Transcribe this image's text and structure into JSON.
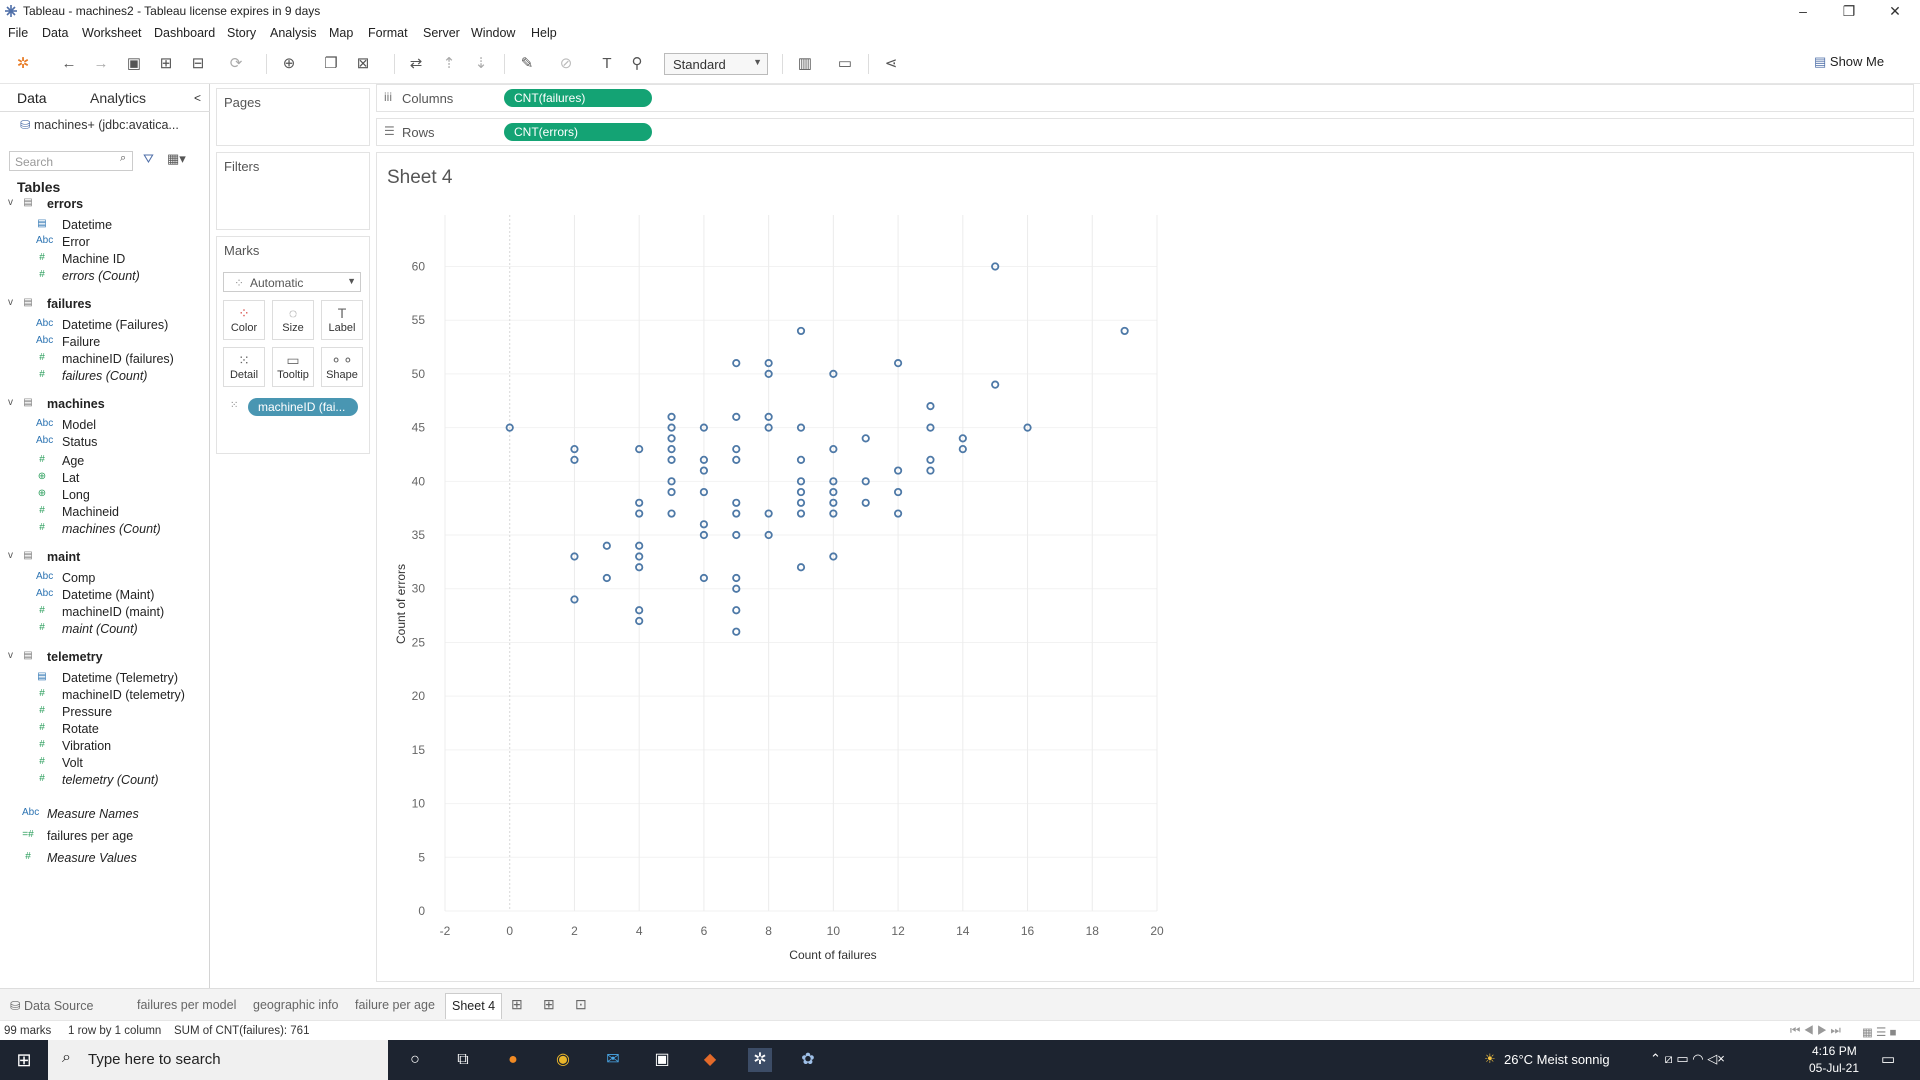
{
  "window": {
    "title": "Tableau - machines2 - Tableau license expires in 9 days",
    "controls": [
      "–",
      "❐",
      "✕"
    ]
  },
  "menu": [
    "File",
    "Data",
    "Worksheet",
    "Dashboard",
    "Story",
    "Analysis",
    "Map",
    "Format",
    "Server",
    "Window",
    "Help"
  ],
  "toolbar": {
    "fit_value": "Standard",
    "show_me": "Show Me",
    "icons": [
      "tableau-logo-icon",
      "undo-icon",
      "redo-icon",
      "save-icon",
      "new-datasource-icon",
      "pause-update-icon",
      "refresh-icon",
      "new-worksheet-icon",
      "duplicate-sheet-icon",
      "clear-sheet-icon",
      "swap-icon",
      "sort-asc-icon",
      "sort-desc-icon",
      "highlight-icon",
      "group-icon",
      "labels-icon",
      "pin-axis-icon",
      "chart-type-icon",
      "presentation-icon",
      "share-icon"
    ]
  },
  "data_pane": {
    "tab_data": "Data",
    "tab_analytics": "Analytics",
    "collapse": "<",
    "datasource": "machines+ (jdbc:avatica...",
    "search_placeholder": "Search",
    "tables_heading": "Tables",
    "tables": [
      {
        "name": "errors",
        "fields": [
          {
            "type": "date",
            "icon": "▤",
            "label": "Datetime"
          },
          {
            "type": "abc",
            "icon": "Abc",
            "label": "Error"
          },
          {
            "type": "num",
            "icon": "#",
            "label": "Machine ID"
          },
          {
            "type": "count",
            "icon": "#",
            "label": "errors (Count)"
          }
        ]
      },
      {
        "name": "failures",
        "fields": [
          {
            "type": "abc",
            "icon": "Abc",
            "label": "Datetime (Failures)"
          },
          {
            "type": "abc",
            "icon": "Abc",
            "label": "Failure"
          },
          {
            "type": "num",
            "icon": "#",
            "label": "machineID (failures)"
          },
          {
            "type": "count",
            "icon": "#",
            "label": "failures (Count)"
          }
        ]
      },
      {
        "name": "machines",
        "fields": [
          {
            "type": "abc",
            "icon": "Abc",
            "label": "Model"
          },
          {
            "type": "abc",
            "icon": "Abc",
            "label": "Status"
          },
          {
            "type": "num",
            "icon": "#",
            "label": "Age"
          },
          {
            "type": "geo",
            "icon": "⊕",
            "label": "Lat"
          },
          {
            "type": "geo",
            "icon": "⊕",
            "label": "Long"
          },
          {
            "type": "num",
            "icon": "#",
            "label": "Machineid"
          },
          {
            "type": "count",
            "icon": "#",
            "label": "machines (Count)"
          }
        ]
      },
      {
        "name": "maint",
        "fields": [
          {
            "type": "abc",
            "icon": "Abc",
            "label": "Comp"
          },
          {
            "type": "abc",
            "icon": "Abc",
            "label": "Datetime (Maint)"
          },
          {
            "type": "num",
            "icon": "#",
            "label": "machineID (maint)"
          },
          {
            "type": "count",
            "icon": "#",
            "label": "maint (Count)"
          }
        ]
      },
      {
        "name": "telemetry",
        "fields": [
          {
            "type": "date",
            "icon": "▤",
            "label": "Datetime (Telemetry)"
          },
          {
            "type": "num",
            "icon": "#",
            "label": "machineID (telemetry)"
          },
          {
            "type": "num",
            "icon": "#",
            "label": "Pressure"
          },
          {
            "type": "num",
            "icon": "#",
            "label": "Rotate"
          },
          {
            "type": "num",
            "icon": "#",
            "label": "Vibration"
          },
          {
            "type": "num",
            "icon": "#",
            "label": "Volt"
          },
          {
            "type": "count",
            "icon": "#",
            "label": "telemetry (Count)"
          }
        ]
      }
    ],
    "extras": [
      {
        "type": "abc",
        "icon": "Abc",
        "label": "Measure Names",
        "italic": true
      },
      {
        "type": "num",
        "icon": "=#",
        "label": "failures per age",
        "italic": false
      },
      {
        "type": "num",
        "icon": "#",
        "label": "Measure Values",
        "italic": true
      }
    ]
  },
  "cards": {
    "pages": "Pages",
    "filters": "Filters",
    "marks": "Marks",
    "mark_type": "Automatic",
    "mark_buttons": [
      {
        "label": "Color",
        "glyph": "⁘",
        "name": "color"
      },
      {
        "label": "Size",
        "glyph": "◌",
        "name": "size"
      },
      {
        "label": "Label",
        "glyph": "T",
        "name": "label"
      },
      {
        "label": "Detail",
        "glyph": "⁙",
        "name": "detail"
      },
      {
        "label": "Tooltip",
        "glyph": "▭",
        "name": "tooltip"
      },
      {
        "label": "Shape",
        "glyph": "⚬⚬",
        "name": "shape"
      }
    ],
    "detail_pill": "machineID (fai..."
  },
  "shelves": {
    "columns_label": "Columns",
    "columns_pill": "CNT(failures)",
    "rows_label": "Rows",
    "rows_pill": "CNT(errors)"
  },
  "colors": {
    "pill_measure": "#14a374",
    "pill_dimension": "#4996b2",
    "mark": "#4e79a7"
  },
  "sheet": {
    "title": "Sheet 4"
  },
  "chart_data": {
    "type": "scatter",
    "title": "Sheet 4",
    "xlabel": "Count of failures",
    "ylabel": "Count of errors",
    "xlim": [
      -2,
      20
    ],
    "ylim": [
      0,
      62
    ],
    "x_ticks": [
      -2,
      0,
      2,
      4,
      6,
      8,
      10,
      12,
      14,
      16,
      18,
      20
    ],
    "y_ticks": [
      0,
      5,
      10,
      15,
      20,
      25,
      30,
      35,
      40,
      45,
      50,
      55,
      60
    ],
    "grid": "vertical",
    "marker": "open-circle",
    "points": [
      [
        0,
        45
      ],
      [
        2,
        43
      ],
      [
        2,
        42
      ],
      [
        2,
        33
      ],
      [
        2,
        29
      ],
      [
        3,
        34
      ],
      [
        3,
        31
      ],
      [
        4,
        43
      ],
      [
        4,
        38
      ],
      [
        4,
        37
      ],
      [
        4,
        34
      ],
      [
        4,
        33
      ],
      [
        4,
        32
      ],
      [
        4,
        28
      ],
      [
        4,
        27
      ],
      [
        5,
        46
      ],
      [
        5,
        45
      ],
      [
        5,
        44
      ],
      [
        5,
        43
      ],
      [
        5,
        42
      ],
      [
        5,
        40
      ],
      [
        5,
        39
      ],
      [
        5,
        37
      ],
      [
        6,
        45
      ],
      [
        6,
        42
      ],
      [
        6,
        41
      ],
      [
        6,
        39
      ],
      [
        6,
        36
      ],
      [
        6,
        35
      ],
      [
        6,
        31
      ],
      [
        7,
        51
      ],
      [
        7,
        46
      ],
      [
        7,
        43
      ],
      [
        7,
        42
      ],
      [
        7,
        38
      ],
      [
        7,
        37
      ],
      [
        7,
        35
      ],
      [
        7,
        31
      ],
      [
        7,
        30
      ],
      [
        7,
        28
      ],
      [
        7,
        26
      ],
      [
        8,
        51
      ],
      [
        8,
        50
      ],
      [
        8,
        46
      ],
      [
        8,
        45
      ],
      [
        8,
        37
      ],
      [
        8,
        35
      ],
      [
        9,
        54
      ],
      [
        9,
        45
      ],
      [
        9,
        42
      ],
      [
        9,
        40
      ],
      [
        9,
        39
      ],
      [
        9,
        38
      ],
      [
        9,
        37
      ],
      [
        9,
        32
      ],
      [
        10,
        50
      ],
      [
        10,
        43
      ],
      [
        10,
        40
      ],
      [
        10,
        39
      ],
      [
        10,
        38
      ],
      [
        10,
        37
      ],
      [
        10,
        33
      ],
      [
        11,
        44
      ],
      [
        11,
        40
      ],
      [
        11,
        38
      ],
      [
        12,
        51
      ],
      [
        12,
        41
      ],
      [
        12,
        39
      ],
      [
        12,
        37
      ],
      [
        13,
        47
      ],
      [
        13,
        45
      ],
      [
        13,
        42
      ],
      [
        13,
        41
      ],
      [
        14,
        44
      ],
      [
        14,
        43
      ],
      [
        15,
        60
      ],
      [
        15,
        49
      ],
      [
        16,
        45
      ],
      [
        19,
        54
      ]
    ]
  },
  "sheet_tabs": {
    "datasource": "Data Source",
    "tabs": [
      "failures per model",
      "geographic info",
      "failure per age",
      "Sheet 4"
    ],
    "active": "Sheet 4"
  },
  "status": {
    "marks": "99 marks",
    "dims": "1 row by 1 column",
    "sum": "SUM of CNT(failures): 761"
  },
  "taskbar": {
    "search_placeholder": "Type here to search",
    "weather": "26°C  Meist sonnig",
    "time": "4:16 PM",
    "date": "05-Jul-21"
  }
}
